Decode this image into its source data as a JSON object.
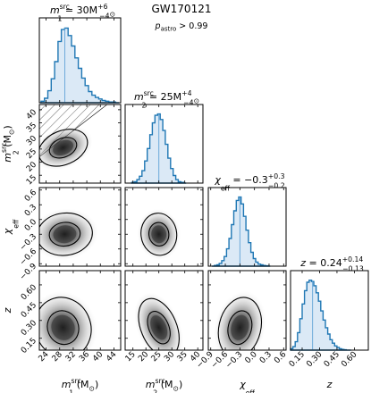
{
  "event_name": "GW170121",
  "p_astro_label": {
    "base": "p",
    "sub": "astro",
    "rest": " > 0.99"
  },
  "colors": {
    "hist_line": "#1f77b4",
    "hist_fill": "#dbe9f6",
    "median_line": "#5fa2d6",
    "contour": "#000000",
    "hatch": "#555555"
  },
  "chart_data": {
    "type": "corner",
    "parameters": [
      {
        "id": "m1",
        "title": {
          "prefix": "m",
          "sub": "1",
          "sup": "src",
          "value": " = 30",
          "plus": "+6",
          "minus": "−4",
          "unit": "M",
          "unit_sub": "⊙"
        },
        "axis_label": {
          "prefix": "m",
          "sub": "1",
          "sup": "src",
          "unit": " (M",
          "unit_sub": "⊙",
          "unit_close": ")"
        },
        "range": [
          22,
          46
        ],
        "ticks": [
          24,
          28,
          32,
          36,
          40,
          44
        ],
        "tick_labels": [
          "24",
          "28",
          "32",
          "36",
          "40",
          "44"
        ],
        "median": 29.5,
        "hist_centers": [
          23,
          24,
          25,
          26,
          27,
          28,
          29,
          30,
          31,
          32,
          33,
          34,
          35,
          36,
          37,
          38,
          39,
          40,
          41,
          42,
          43,
          44,
          45
        ],
        "hist_values": [
          0.02,
          0.06,
          0.16,
          0.32,
          0.55,
          0.82,
          0.98,
          1.0,
          0.9,
          0.76,
          0.6,
          0.46,
          0.33,
          0.23,
          0.15,
          0.1,
          0.07,
          0.05,
          0.03,
          0.02,
          0.01,
          0.01,
          0.0
        ]
      },
      {
        "id": "m2",
        "title": {
          "prefix": "m",
          "sub": "2",
          "sup": "src",
          "value": " = 25",
          "plus": "+4",
          "minus": "−4",
          "unit": "M",
          "unit_sub": "⊙"
        },
        "axis_label": {
          "prefix": "m",
          "sub": "2",
          "sup": "src",
          "unit": " (M",
          "unit_sub": "⊙",
          "unit_close": ")"
        },
        "range": [
          12,
          42
        ],
        "ticks": [
          15,
          20,
          25,
          30,
          35,
          40
        ],
        "tick_labels": [
          "15",
          "20",
          "25",
          "30",
          "35",
          "40"
        ],
        "median": 25,
        "hist_centers": [
          15,
          16,
          17,
          18,
          19,
          20,
          21,
          22,
          23,
          24,
          25,
          26,
          27,
          28,
          29,
          30,
          31,
          32,
          33,
          34,
          35
        ],
        "hist_values": [
          0.01,
          0.02,
          0.05,
          0.1,
          0.18,
          0.32,
          0.5,
          0.7,
          0.87,
          0.98,
          1.0,
          0.92,
          0.76,
          0.56,
          0.36,
          0.21,
          0.11,
          0.05,
          0.02,
          0.01,
          0.0
        ]
      },
      {
        "id": "chi_eff",
        "title": {
          "prefix": "χ",
          "sub": "eff",
          "sup": "",
          "value": " = −0.3",
          "plus": "+0.3",
          "minus": "−0.2",
          "unit": "",
          "unit_sub": ""
        },
        "axis_label": {
          "prefix": "χ",
          "sub": "eff",
          "sup": "",
          "unit": "",
          "unit_sub": "",
          "unit_close": ""
        },
        "range": [
          -0.95,
          0.65
        ],
        "ticks": [
          -0.9,
          -0.6,
          -0.3,
          0.0,
          0.3,
          0.6
        ],
        "tick_labels": [
          "−0.9",
          "−0.6",
          "−0.3",
          "0.0",
          "0.3",
          "0.6"
        ],
        "median": -0.3,
        "hist_centers": [
          -0.85,
          -0.8,
          -0.75,
          -0.7,
          -0.65,
          -0.6,
          -0.55,
          -0.5,
          -0.45,
          -0.4,
          -0.35,
          -0.3,
          -0.25,
          -0.2,
          -0.15,
          -0.1,
          -0.05,
          0.0,
          0.05,
          0.1,
          0.15,
          0.2,
          0.25,
          0.3
        ],
        "hist_values": [
          0.0,
          0.01,
          0.02,
          0.04,
          0.08,
          0.14,
          0.25,
          0.4,
          0.6,
          0.8,
          0.95,
          1.0,
          0.9,
          0.72,
          0.52,
          0.34,
          0.2,
          0.11,
          0.06,
          0.03,
          0.02,
          0.01,
          0.005,
          0.0
        ]
      },
      {
        "id": "z",
        "title": {
          "prefix": "z",
          "sub": "",
          "sup": "",
          "value": " = 0.24",
          "plus": "+0.14",
          "minus": "−0.13",
          "unit": "",
          "unit_sub": ""
        },
        "axis_label": {
          "prefix": "z",
          "sub": "",
          "sup": "",
          "unit": "",
          "unit_sub": "",
          "unit_close": ""
        },
        "range": [
          0.05,
          0.72
        ],
        "ticks": [
          0.15,
          0.3,
          0.45,
          0.6
        ],
        "tick_labels": [
          "0.15",
          "0.30",
          "0.45",
          "0.60"
        ],
        "median": 0.24,
        "hist_centers": [
          0.06,
          0.08,
          0.1,
          0.12,
          0.14,
          0.16,
          0.18,
          0.2,
          0.22,
          0.24,
          0.26,
          0.28,
          0.3,
          0.32,
          0.34,
          0.36,
          0.38,
          0.4,
          0.42,
          0.44,
          0.46,
          0.48,
          0.5,
          0.52,
          0.54,
          0.56
        ],
        "hist_values": [
          0.02,
          0.05,
          0.12,
          0.25,
          0.45,
          0.66,
          0.85,
          0.97,
          1.0,
          0.98,
          0.92,
          0.82,
          0.7,
          0.56,
          0.43,
          0.32,
          0.23,
          0.15,
          0.1,
          0.06,
          0.04,
          0.02,
          0.01,
          0.005,
          0.0,
          0.0
        ]
      }
    ],
    "joint_2d": [
      {
        "x": "m1",
        "y": "m2",
        "center": [
          29,
          25.5
        ],
        "sigma": [
          3.5,
          3.0
        ],
        "rho": 0.35,
        "excluded_region": "m2 > m1 (hatched)"
      },
      {
        "x": "m1",
        "y": "chi_eff",
        "center": [
          29.5,
          -0.3
        ],
        "sigma": [
          3.8,
          0.2
        ],
        "rho": 0.1
      },
      {
        "x": "m2",
        "y": "chi_eff",
        "center": [
          25,
          -0.3
        ],
        "sigma": [
          3.2,
          0.2
        ],
        "rho": 0.1
      },
      {
        "x": "m1",
        "y": "z",
        "center": [
          29,
          0.24
        ],
        "sigma": [
          3.8,
          0.12
        ],
        "rho": 0.35
      },
      {
        "x": "m2",
        "y": "z",
        "center": [
          25,
          0.24
        ],
        "sigma": [
          3.2,
          0.12
        ],
        "rho": 0.35
      },
      {
        "x": "chi_eff",
        "y": "z",
        "center": [
          -0.3,
          0.24
        ],
        "sigma": [
          0.2,
          0.12
        ],
        "rho": -0.2
      }
    ],
    "contour_levels": [
      "50%",
      "90%"
    ]
  }
}
